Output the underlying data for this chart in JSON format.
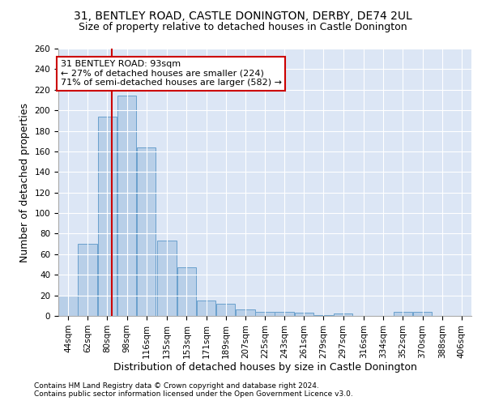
{
  "title_line1": "31, BENTLEY ROAD, CASTLE DONINGTON, DERBY, DE74 2UL",
  "title_line2": "Size of property relative to detached houses in Castle Donington",
  "xlabel": "Distribution of detached houses by size in Castle Donington",
  "ylabel": "Number of detached properties",
  "footnote1": "Contains HM Land Registry data © Crown copyright and database right 2024.",
  "footnote2": "Contains public sector information licensed under the Open Government Licence v3.0.",
  "bar_color": "#b8cfe8",
  "bar_edge_color": "#6aa0cc",
  "background_color": "#dce6f5",
  "grid_color": "#ffffff",
  "annotation_box_text": "31 BENTLEY ROAD: 93sqm\n← 27% of detached houses are smaller (224)\n71% of semi-detached houses are larger (582) →",
  "annotation_box_color": "#ffffff",
  "annotation_box_edge_color": "#cc0000",
  "vline_x": 93,
  "vline_color": "#cc0000",
  "categories": [
    "44sqm",
    "62sqm",
    "80sqm",
    "98sqm",
    "116sqm",
    "135sqm",
    "153sqm",
    "171sqm",
    "189sqm",
    "207sqm",
    "225sqm",
    "243sqm",
    "261sqm",
    "279sqm",
    "297sqm",
    "316sqm",
    "334sqm",
    "352sqm",
    "370sqm",
    "388sqm",
    "406sqm"
  ],
  "bin_edges": [
    44,
    62,
    80,
    98,
    116,
    135,
    153,
    171,
    189,
    207,
    225,
    243,
    261,
    279,
    297,
    316,
    334,
    352,
    370,
    388,
    406
  ],
  "bin_width": 18,
  "bar_heights": [
    20,
    70,
    194,
    214,
    164,
    73,
    47,
    15,
    12,
    6,
    4,
    4,
    3,
    1,
    2,
    0,
    0,
    4,
    4,
    0,
    0
  ],
  "ylim": [
    0,
    260
  ],
  "yticks": [
    0,
    20,
    40,
    60,
    80,
    100,
    120,
    140,
    160,
    180,
    200,
    220,
    240,
    260
  ],
  "title_fontsize": 10,
  "subtitle_fontsize": 9,
  "tick_fontsize": 7.5,
  "label_fontsize": 9,
  "footnote_fontsize": 6.5
}
